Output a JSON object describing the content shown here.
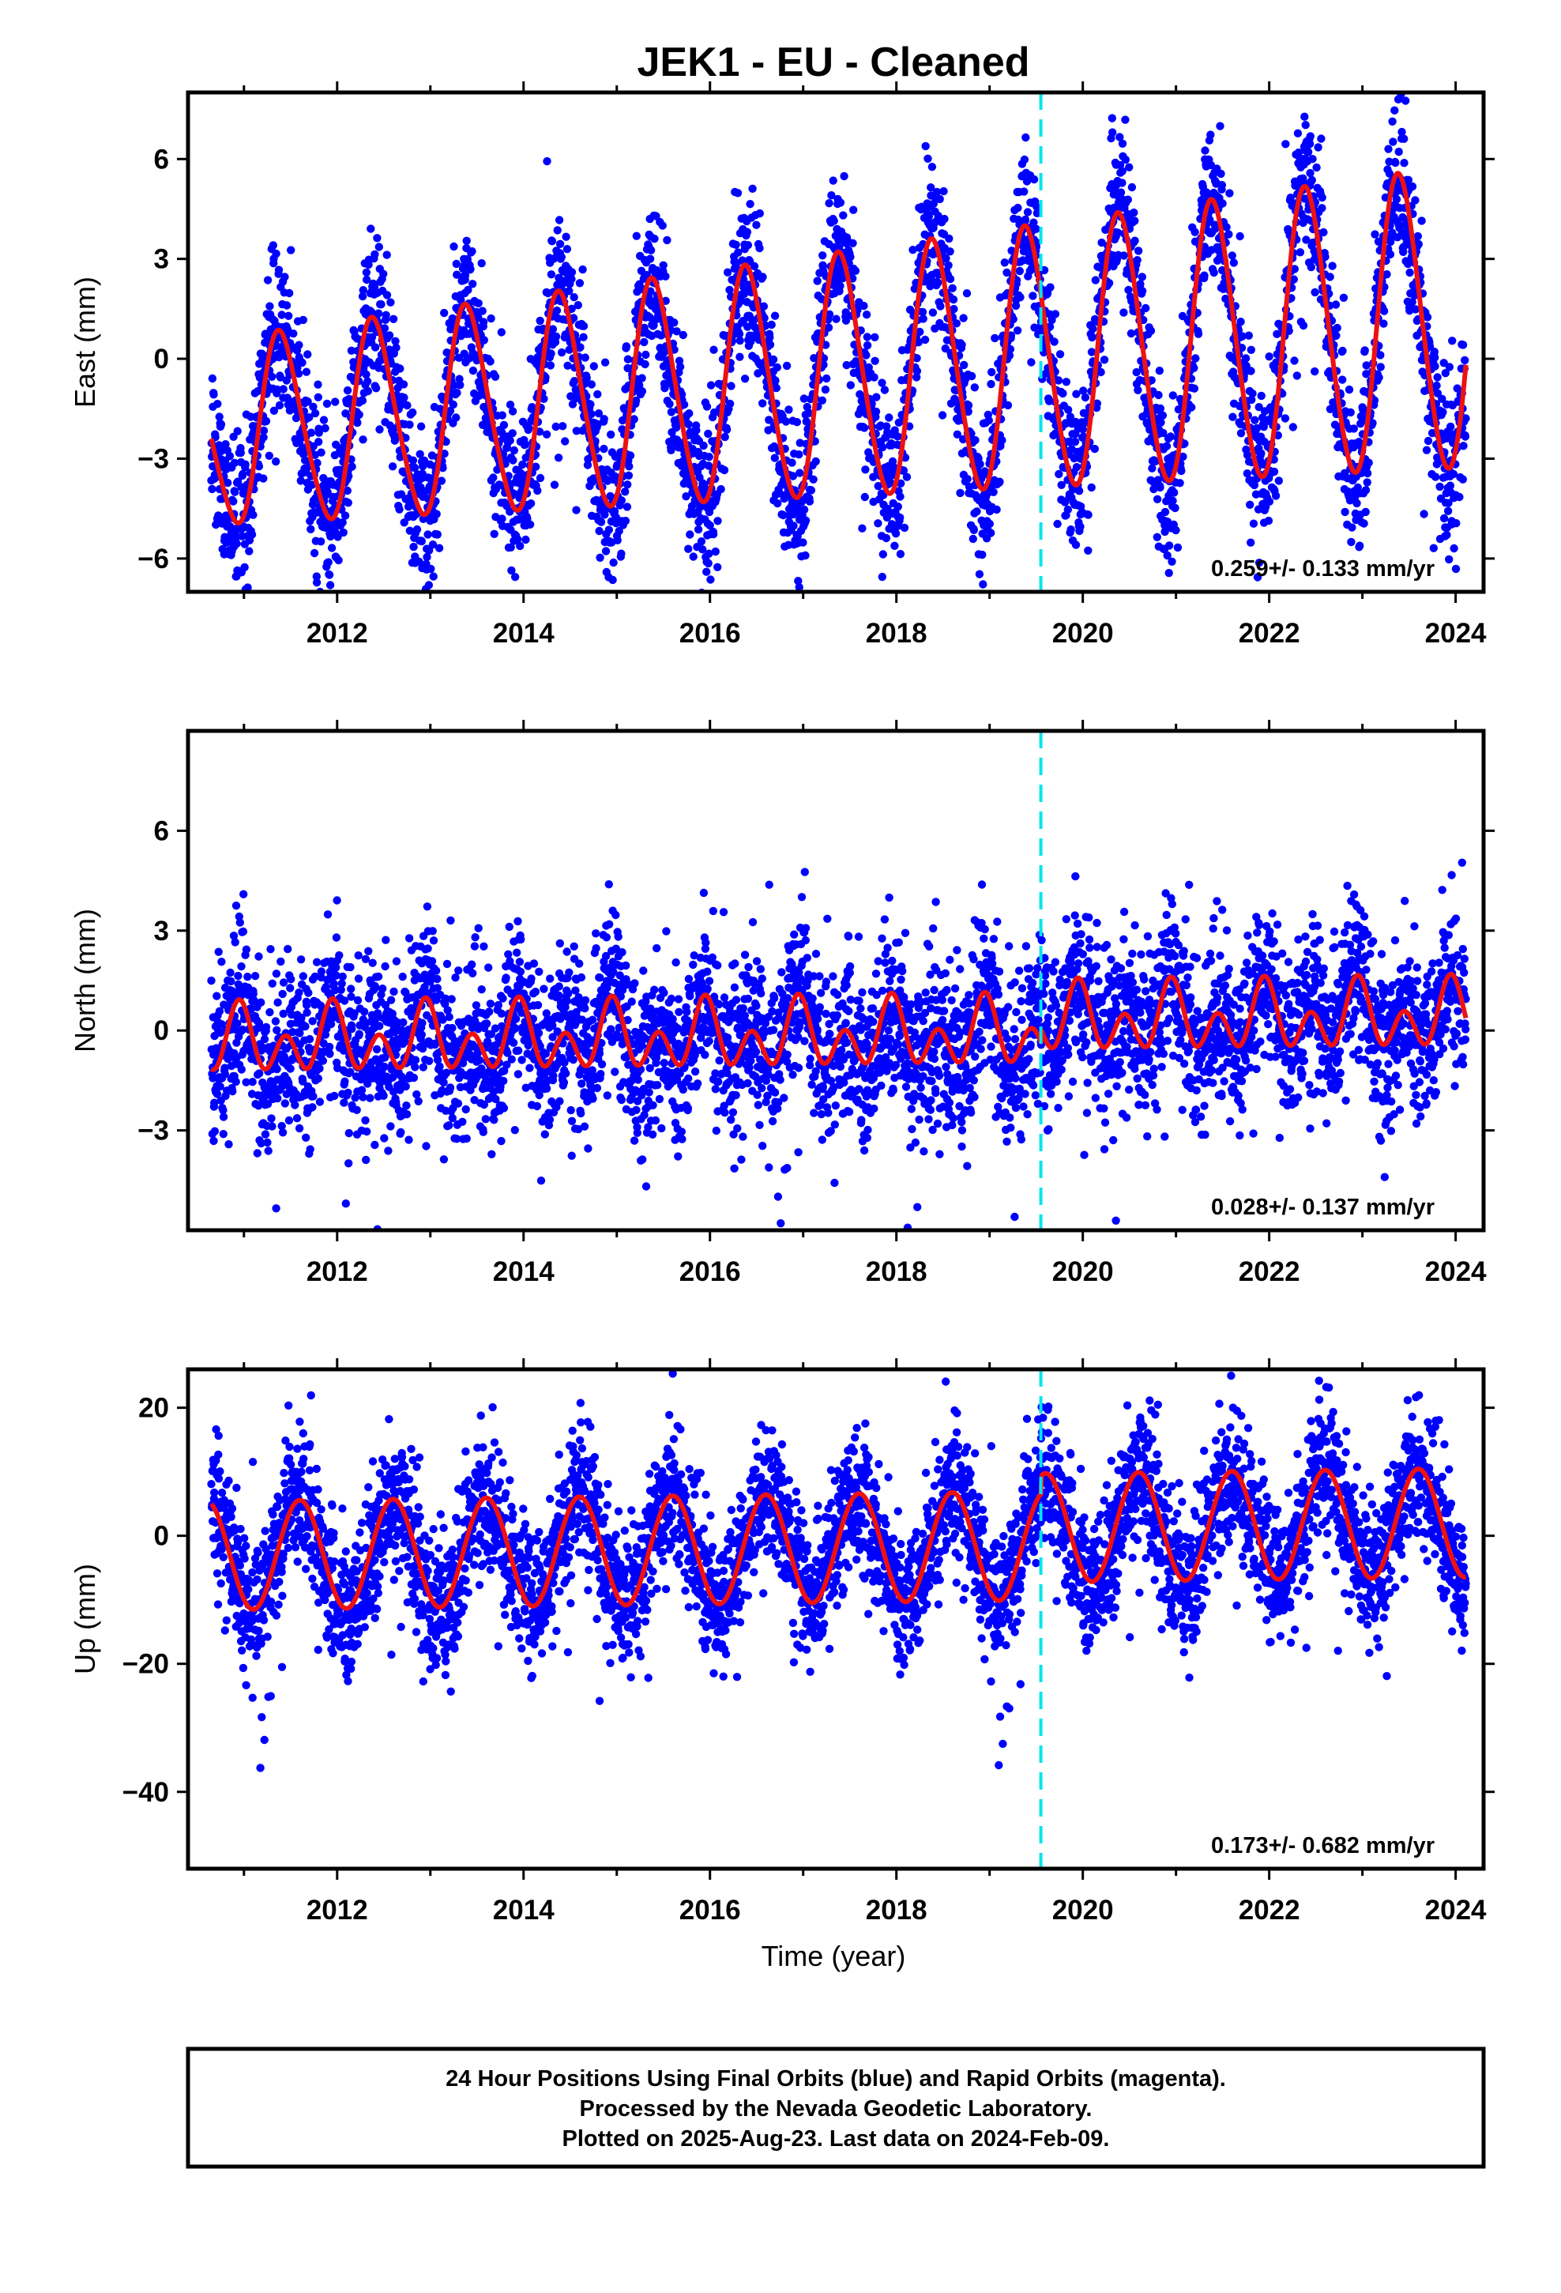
{
  "title": "JEK1  - EU - Cleaned",
  "xlabel": "Time (year)",
  "footer": {
    "line1": "24 Hour Positions Using Final Orbits (blue) and Rapid Orbits (magenta).",
    "line2": "Processed by the Nevada Geodetic Laboratory.",
    "line3": "Plotted on 2025-Aug-23. Last data on 2024-Feb-09."
  },
  "colors": {
    "final_orbits": "#0000ff",
    "fit": "#ee1111",
    "event_line": "#00e5ee",
    "frame": "#000000"
  },
  "chart_data": [
    {
      "type": "scatter",
      "name": "east",
      "ylabel": "East (mm)",
      "xlim": [
        2010.4,
        2024.3
      ],
      "ylim": [
        -7,
        8
      ],
      "xticks": [
        "2012",
        "2014",
        "2016",
        "2018",
        "2020",
        "2022",
        "2024"
      ],
      "yticks": [
        "−6",
        "−3",
        "0",
        "3",
        "6"
      ],
      "ytick_values": [
        -6,
        -3,
        0,
        3,
        6
      ],
      "rate_label": "0.259+/- 0.133 mm/yr",
      "event_line_x": 2019.55,
      "time_span": [
        2010.65,
        2024.11
      ],
      "fit": {
        "offset": -0.65,
        "rate": 0.259,
        "annual_amp": 2.7,
        "annual_peak": 0.4,
        "semi_amp": 0.35,
        "semi_peak": 0.3,
        "growth_per_yr": 0.05,
        "step_at_event": 0.0
      },
      "scatter_noise_sd": 1.15,
      "grid": false
    },
    {
      "type": "scatter",
      "name": "north",
      "ylabel": "North (mm)",
      "xlim": [
        2010.4,
        2024.3
      ],
      "ylim": [
        -6,
        9
      ],
      "xticks": [
        "2012",
        "2014",
        "2016",
        "2018",
        "2020",
        "2022",
        "2024"
      ],
      "yticks": [
        "−3",
        "0",
        "3",
        "6"
      ],
      "ytick_values": [
        -3,
        0,
        3,
        6
      ],
      "rate_label": "0.028+/- 0.137 mm/yr",
      "event_line_x": 2019.55,
      "time_span": [
        2010.65,
        2024.11
      ],
      "fit": {
        "offset": -0.2,
        "rate": 0.028,
        "annual_amp": 0.55,
        "annual_peak": 0.95,
        "semi_amp": 0.75,
        "semi_peak": 0.45,
        "growth_per_yr": 0.0,
        "step_at_event": 0.4
      },
      "scatter_noise_sd": 1.2,
      "grid": false
    },
    {
      "type": "scatter",
      "name": "up",
      "ylabel": "Up (mm)",
      "xlim": [
        2010.4,
        2024.3
      ],
      "ylim": [
        -52,
        26
      ],
      "xticks": [
        "2012",
        "2014",
        "2016",
        "2018",
        "2020",
        "2022",
        "2024"
      ],
      "yticks": [
        "−40",
        "−20",
        "0",
        "20"
      ],
      "ytick_values": [
        -40,
        -20,
        0,
        20
      ],
      "rate_label": "0.173+/- 0.682 mm/yr",
      "event_line_x": 2019.55,
      "time_span": [
        2010.65,
        2024.11
      ],
      "fit": {
        "offset": -2.0,
        "rate": 0.173,
        "annual_amp": 8.5,
        "annual_peak": 0.6,
        "semi_amp": 0.0,
        "semi_peak": 0.0,
        "growth_per_yr": 0.0,
        "step_at_event": 2.8
      },
      "scatter_noise_sd": 5.2,
      "grid": false
    }
  ]
}
